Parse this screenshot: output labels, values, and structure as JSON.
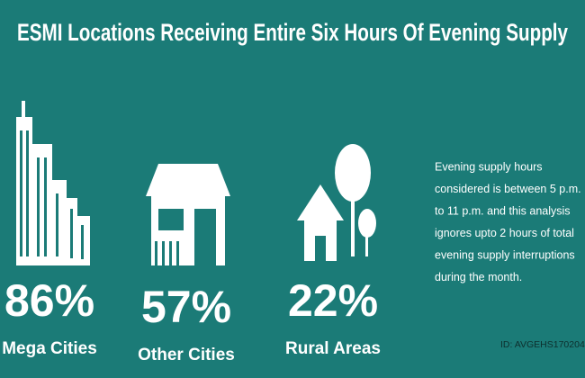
{
  "title": "ESMI Locations Receiving Entire Six Hours Of Evening Supply",
  "stats": [
    {
      "value": "86%",
      "label": "Mega Cities"
    },
    {
      "value": "57%",
      "label": "Other Cities"
    },
    {
      "value": "22%",
      "label": "Rural Areas"
    }
  ],
  "note": [
    "Evening supply hours",
    "considered is between 5 p.m.",
    "to 11 p.m. and this analysis",
    "ignores upto 2 hours of total",
    "evening supply interruptions",
    "during the month."
  ],
  "id": "ID: AVGEHS170204"
}
